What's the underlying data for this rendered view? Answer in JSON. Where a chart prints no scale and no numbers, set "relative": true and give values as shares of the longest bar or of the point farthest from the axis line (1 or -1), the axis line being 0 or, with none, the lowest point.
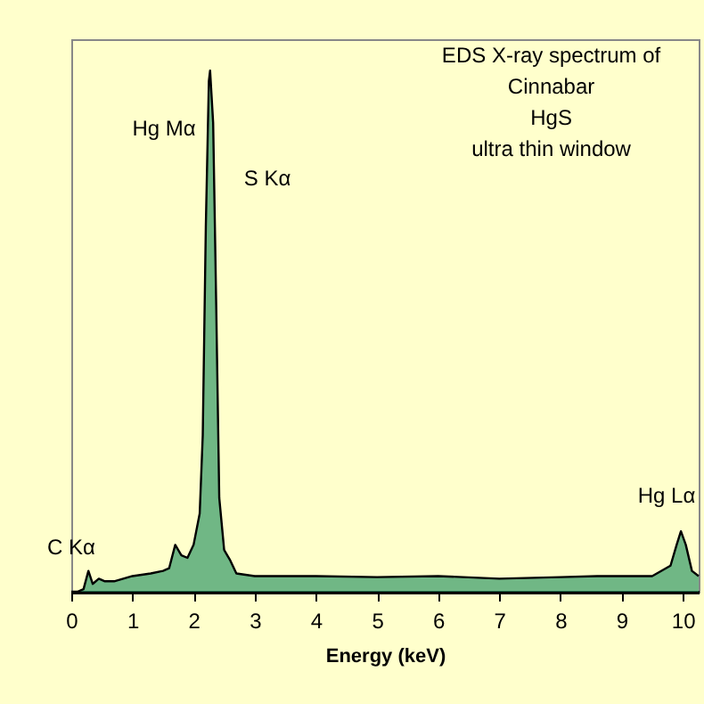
{
  "chart_data": {
    "type": "area",
    "relative": true,
    "title": "EDS X-ray spectrum of\nCinnabar\nHgS\nultra thin window",
    "xlabel": "Energy (keV)",
    "xlim": [
      0,
      10.26
    ],
    "xticks": [
      0,
      1,
      2,
      3,
      4,
      5,
      6,
      7,
      8,
      9,
      10
    ],
    "grid": false,
    "x": [
      0,
      0.1,
      0.2,
      0.28,
      0.35,
      0.45,
      0.55,
      0.7,
      1.0,
      1.3,
      1.5,
      1.6,
      1.7,
      1.8,
      1.9,
      2.0,
      2.1,
      2.15,
      2.2,
      2.25,
      2.27,
      2.32,
      2.37,
      2.42,
      2.5,
      2.6,
      2.7,
      3.0,
      4.0,
      5.0,
      6.0,
      7.0,
      8.0,
      8.6,
      9.5,
      9.8,
      9.9,
      9.97,
      10.05,
      10.15,
      10.26
    ],
    "series": [
      {
        "color": "#339966",
        "values": [
          0,
          0,
          0.005,
          0.04,
          0.015,
          0.025,
          0.02,
          0.02,
          0.03,
          0.035,
          0.04,
          0.045,
          0.09,
          0.07,
          0.065,
          0.09,
          0.15,
          0.3,
          0.7,
          0.98,
          1.0,
          0.9,
          0.55,
          0.18,
          0.08,
          0.06,
          0.035,
          0.03,
          0.03,
          0.028,
          0.03,
          0.025,
          0.028,
          0.03,
          0.03,
          0.05,
          0.09,
          0.116,
          0.09,
          0.04,
          0.03
        ]
      }
    ],
    "annotations": [
      "Hg Mα",
      "S Kα",
      "C Kα",
      "Hg Lα"
    ]
  }
}
